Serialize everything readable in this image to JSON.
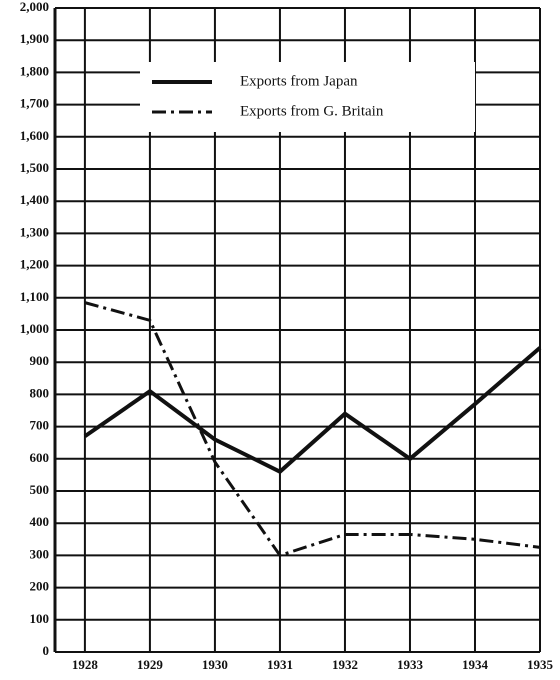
{
  "chart_data": {
    "type": "line",
    "x": [
      1928,
      1929,
      1930,
      1931,
      1932,
      1933,
      1934,
      1935
    ],
    "xlim": [
      1927.54,
      1935
    ],
    "ylim": [
      0,
      2000
    ],
    "yticks": [
      0,
      100,
      200,
      300,
      400,
      500,
      600,
      700,
      800,
      900,
      {
        "value": 1000,
        "label": "1,000"
      },
      {
        "value": 1100,
        "label": "1,100"
      },
      {
        "value": 1200,
        "label": "1,200"
      },
      {
        "value": 1300,
        "label": "1,300"
      },
      {
        "value": 1400,
        "label": "1,400"
      },
      {
        "value": 1500,
        "label": "1,500"
      },
      {
        "value": 1600,
        "label": "1,600"
      },
      {
        "value": 1700,
        "label": "1,700"
      },
      {
        "value": 1800,
        "label": "1,800"
      },
      {
        "value": 1900,
        "label": "1,900"
      },
      {
        "value": 2000,
        "label": "2,000"
      }
    ],
    "grid": true,
    "legend": "top",
    "series": [
      {
        "name": "Exports from Japan",
        "color": "#111111",
        "linestyle": "solid",
        "values": [
          670,
          810,
          660,
          560,
          740,
          600,
          770,
          945
        ]
      },
      {
        "name": "Exports from G. Britain",
        "color": "#111111",
        "linestyle": "dashdot",
        "values": [
          1085,
          1030,
          590,
          300,
          365,
          365,
          350,
          325
        ]
      }
    ]
  }
}
